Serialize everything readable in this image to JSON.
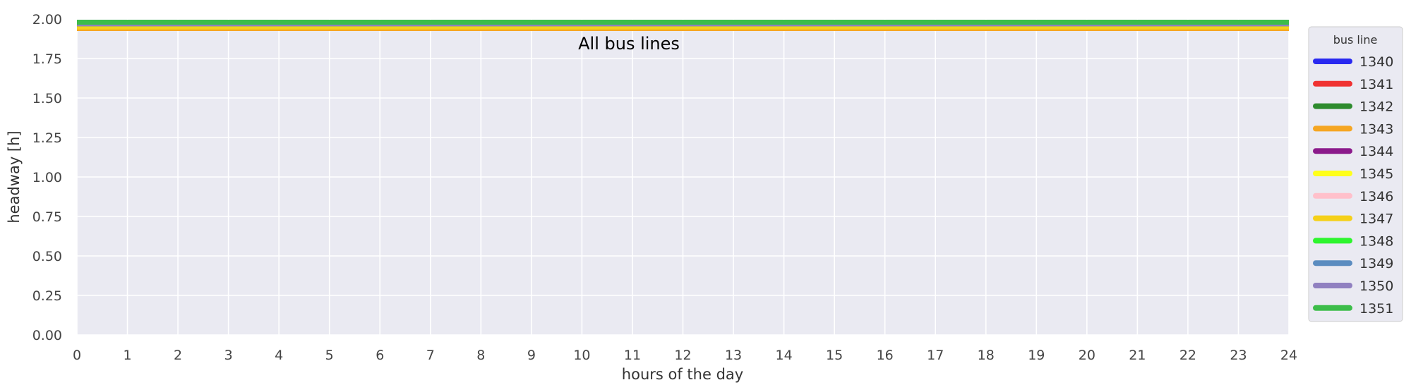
{
  "chart_data": {
    "type": "line",
    "title": "All bus lines",
    "xlabel": "hours of the day",
    "ylabel": "headway [h]",
    "xlim": [
      0,
      24
    ],
    "ylim": [
      0,
      2
    ],
    "xticks": [
      "0",
      "1",
      "2",
      "3",
      "4",
      "5",
      "6",
      "7",
      "8",
      "9",
      "10",
      "11",
      "12",
      "13",
      "14",
      "15",
      "16",
      "17",
      "18",
      "19",
      "20",
      "21",
      "22",
      "23",
      "24"
    ],
    "yticks": [
      "0.00",
      "0.25",
      "0.50",
      "0.75",
      "1.00",
      "1.25",
      "1.50",
      "1.75",
      "2.00"
    ],
    "grid": true,
    "legend": {
      "title": "bus line",
      "placement": "outside-right"
    },
    "series": [
      {
        "name": "1340",
        "color": "#2929f0",
        "x": [
          0,
          24
        ],
        "y": [
          1.97,
          1.97
        ]
      },
      {
        "name": "1341",
        "color": "#f03232",
        "x": [
          0,
          24
        ],
        "y": [
          1.97,
          1.97
        ]
      },
      {
        "name": "1342",
        "color": "#2e8b2e",
        "x": [
          0,
          24
        ],
        "y": [
          1.97,
          1.97
        ]
      },
      {
        "name": "1343",
        "color": "#f5a623",
        "x": [
          0,
          24
        ],
        "y": [
          1.94,
          1.94
        ]
      },
      {
        "name": "1344",
        "color": "#8b1a8b",
        "x": [
          0,
          24
        ],
        "y": [
          1.97,
          1.97
        ]
      },
      {
        "name": "1345",
        "color": "#ffff1a",
        "x": [
          0,
          24
        ],
        "y": [
          1.97,
          1.97
        ]
      },
      {
        "name": "1346",
        "color": "#ffc0cb",
        "x": [
          0,
          24
        ],
        "y": [
          1.97,
          1.97
        ]
      },
      {
        "name": "1347",
        "color": "#f5d019",
        "x": [
          0,
          24
        ],
        "y": [
          1.95,
          1.95
        ]
      },
      {
        "name": "1348",
        "color": "#2ef52e",
        "x": [
          0,
          24
        ],
        "y": [
          1.97,
          1.97
        ]
      },
      {
        "name": "1349",
        "color": "#5b8cc0",
        "x": [
          0,
          24
        ],
        "y": [
          1.97,
          1.97
        ]
      },
      {
        "name": "1350",
        "color": "#9080c0",
        "x": [
          0,
          24
        ],
        "y": [
          1.97,
          1.97
        ]
      },
      {
        "name": "1351",
        "color": "#3dbd4a",
        "x": [
          0,
          24
        ],
        "y": [
          1.98,
          1.98
        ]
      }
    ]
  }
}
